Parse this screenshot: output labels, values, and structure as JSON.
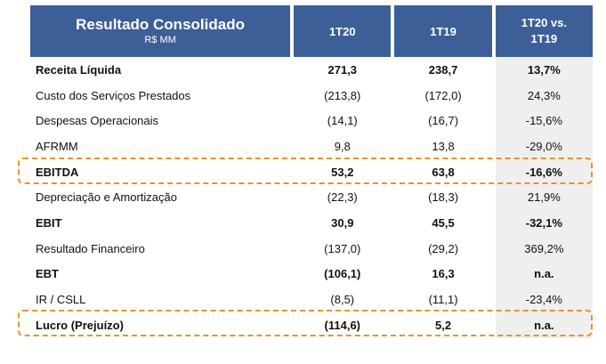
{
  "header": {
    "title": "Resultado Consolidado",
    "subtitle": "R$ MM",
    "period_1": "1T20",
    "period_2": "1T19",
    "variation_line1": "1T20 vs.",
    "variation_line2": "1T19"
  },
  "rows": [
    {
      "label": "Receita Líquida",
      "v1": "271,3",
      "v2": "238,7",
      "var": "13,7%",
      "bold": true
    },
    {
      "label": "Custo dos Serviços Prestados",
      "v1": "(213,8)",
      "v2": "(172,0)",
      "var": "24,3%",
      "bold": false
    },
    {
      "label": "Despesas Operacionais",
      "v1": "(14,1)",
      "v2": "(16,7)",
      "var": "-15,6%",
      "bold": false
    },
    {
      "label": "AFRMM",
      "v1": "9,8",
      "v2": "13,8",
      "var": "-29,0%",
      "bold": false
    },
    {
      "label": "EBITDA",
      "v1": "53,2",
      "v2": "63,8",
      "var": "-16,6%",
      "bold": true
    },
    {
      "label": "Depreciação e Amortização",
      "v1": "(22,3)",
      "v2": "(18,3)",
      "var": "21,9%",
      "bold": false
    },
    {
      "label": "EBIT",
      "v1": "30,9",
      "v2": "45,5",
      "var": "-32,1%",
      "bold": true
    },
    {
      "label": "Resultado Financeiro",
      "v1": "(137,0)",
      "v2": "(29,2)",
      "var": "369,2%",
      "bold": false
    },
    {
      "label": "EBT",
      "v1": "(106,1)",
      "v2": "16,3",
      "var": "n.a.",
      "bold": true
    },
    {
      "label": "IR / CSLL",
      "v1": "(8,5)",
      "v2": "(11,1)",
      "var": "-23,4%",
      "bold": false
    },
    {
      "label": "Lucro (Prejuízo)",
      "v1": "(114,6)",
      "v2": "5,2",
      "var": "n.a.",
      "bold": true
    }
  ],
  "colors": {
    "header_bg": "#3d5f98",
    "variation_column_bg": "#efefef",
    "highlight_border": "#e8922a"
  }
}
